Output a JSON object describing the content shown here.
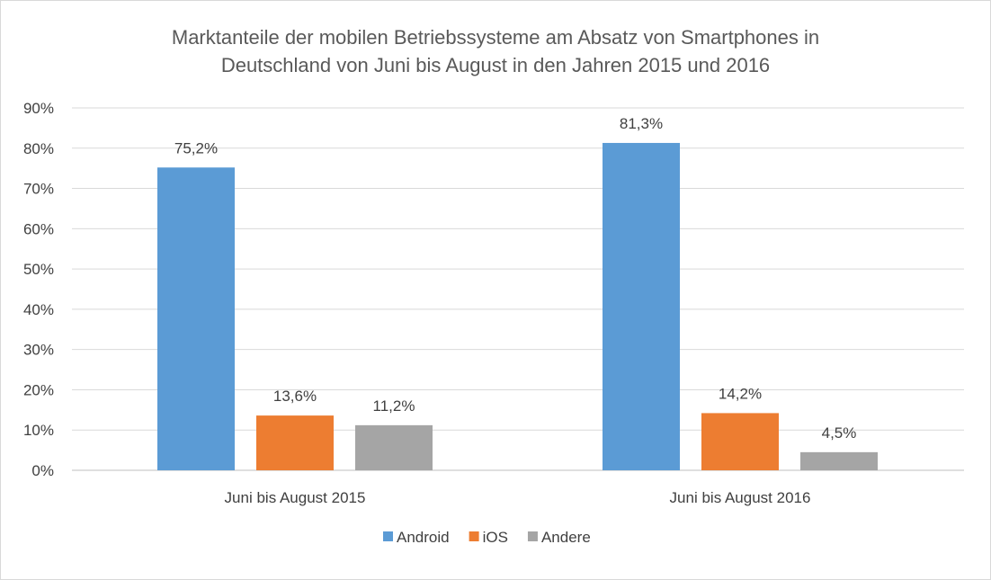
{
  "chart_data": {
    "type": "bar",
    "title_lines": [
      "Marktanteile der mobilen Betriebssysteme am Absatz von Smartphones in",
      "Deutschland von Juni bis August in den Jahren 2015 und 2016"
    ],
    "categories": [
      "Juni bis August 2015",
      "Juni bis August 2016"
    ],
    "series": [
      {
        "name": "Android",
        "color": "#5b9bd5",
        "values": [
          75.2,
          81.3
        ],
        "labels": [
          "75,2%",
          "81,3%"
        ]
      },
      {
        "name": "iOS",
        "color": "#ed7d31",
        "values": [
          13.6,
          14.2
        ],
        "labels": [
          "13,6%",
          "14,2%"
        ]
      },
      {
        "name": "Andere",
        "color": "#a5a5a5",
        "values": [
          11.2,
          4.5
        ],
        "labels": [
          "11,2%",
          "4,5%"
        ]
      }
    ],
    "ylim": [
      0,
      90
    ],
    "yticks": [
      "0%",
      "10%",
      "20%",
      "30%",
      "40%",
      "50%",
      "60%",
      "70%",
      "80%",
      "90%"
    ],
    "grid": true,
    "legend": "bottom",
    "gridline_color": "#d9d9d9"
  }
}
